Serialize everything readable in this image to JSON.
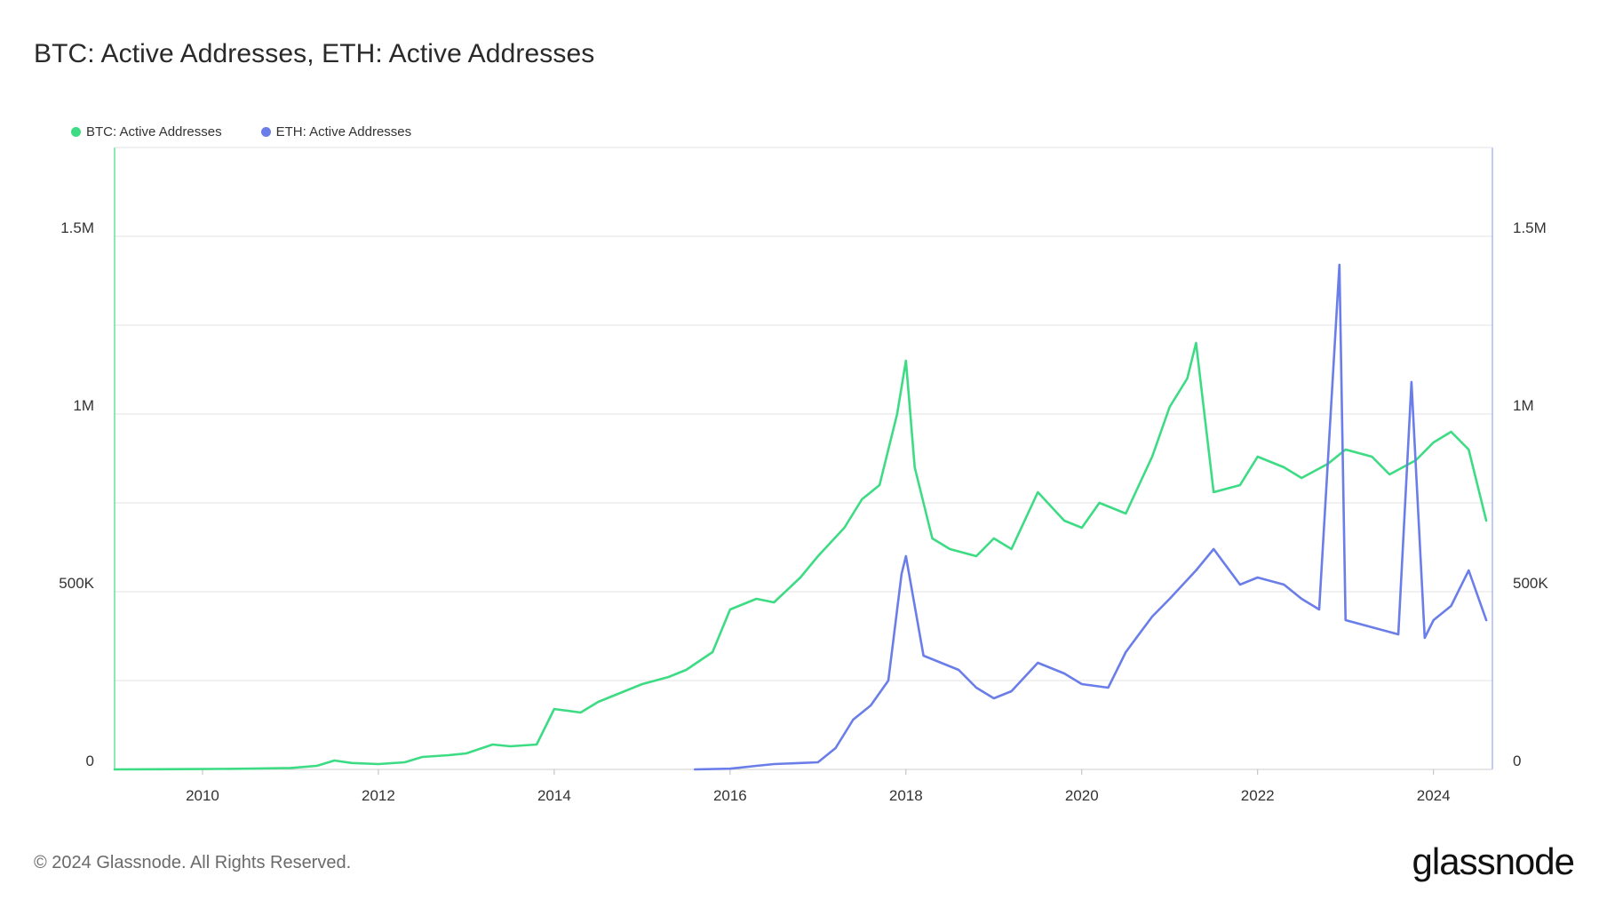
{
  "title": "BTC: Active Addresses, ETH: Active Addresses",
  "footer": "© 2024 Glassnode. All Rights Reserved.",
  "logo": "glassnode",
  "chart_data": {
    "type": "line",
    "title": "BTC: Active Addresses, ETH: Active Addresses",
    "xlabel": "",
    "ylabel": "",
    "xlim": [
      2009.0,
      2024.67
    ],
    "ylim": [
      0,
      1750000
    ],
    "grid": true,
    "legend_position": "top-left",
    "x_ticks": [
      2010,
      2012,
      2014,
      2016,
      2018,
      2020,
      2022,
      2024
    ],
    "x_tick_labels": [
      "2010",
      "2012",
      "2014",
      "2016",
      "2018",
      "2020",
      "2022",
      "2024"
    ],
    "y_ticks": [
      0,
      500000,
      1000000,
      1500000
    ],
    "y_tick_labels": [
      "0",
      "500K",
      "1M",
      "1.5M"
    ],
    "y_grid": [
      0,
      250000,
      500000,
      750000,
      1000000,
      1250000,
      1500000
    ],
    "right_y_tick_labels": [
      "0",
      "500K",
      "1M",
      "1.5M"
    ],
    "series": [
      {
        "name": "BTC: Active Addresses",
        "color": "#3ddc84",
        "x": [
          2009.0,
          2009.5,
          2010.0,
          2010.5,
          2011.0,
          2011.3,
          2011.5,
          2011.7,
          2012.0,
          2012.3,
          2012.5,
          2012.8,
          2013.0,
          2013.3,
          2013.5,
          2013.8,
          2014.0,
          2014.3,
          2014.5,
          2014.8,
          2015.0,
          2015.3,
          2015.5,
          2015.8,
          2016.0,
          2016.3,
          2016.5,
          2016.8,
          2017.0,
          2017.3,
          2017.5,
          2017.7,
          2017.9,
          2018.0,
          2018.1,
          2018.3,
          2018.5,
          2018.8,
          2019.0,
          2019.2,
          2019.5,
          2019.8,
          2020.0,
          2020.2,
          2020.5,
          2020.8,
          2021.0,
          2021.2,
          2021.3,
          2021.5,
          2021.8,
          2022.0,
          2022.3,
          2022.5,
          2022.8,
          2023.0,
          2023.3,
          2023.5,
          2023.8,
          2024.0,
          2024.2,
          2024.4,
          2024.6
        ],
        "y": [
          0,
          500,
          1000,
          2000,
          4000,
          10000,
          25000,
          18000,
          15000,
          20000,
          35000,
          40000,
          45000,
          70000,
          65000,
          70000,
          170000,
          160000,
          190000,
          220000,
          240000,
          260000,
          280000,
          330000,
          450000,
          480000,
          470000,
          540000,
          600000,
          680000,
          760000,
          800000,
          1000000,
          1150000,
          850000,
          650000,
          620000,
          600000,
          650000,
          620000,
          780000,
          700000,
          680000,
          750000,
          720000,
          880000,
          1020000,
          1100000,
          1200000,
          780000,
          800000,
          880000,
          850000,
          820000,
          860000,
          900000,
          880000,
          830000,
          870000,
          920000,
          950000,
          900000,
          700000
        ]
      },
      {
        "name": "ETH: Active Addresses",
        "color": "#6a7de8",
        "x": [
          2015.6,
          2016.0,
          2016.3,
          2016.5,
          2016.8,
          2017.0,
          2017.2,
          2017.4,
          2017.6,
          2017.8,
          2017.95,
          2018.0,
          2018.2,
          2018.4,
          2018.6,
          2018.8,
          2019.0,
          2019.2,
          2019.5,
          2019.8,
          2020.0,
          2020.3,
          2020.5,
          2020.8,
          2021.0,
          2021.3,
          2021.5,
          2021.8,
          2022.0,
          2022.3,
          2022.5,
          2022.7,
          2022.93,
          2023.0,
          2023.3,
          2023.6,
          2023.75,
          2023.9,
          2024.0,
          2024.2,
          2024.4,
          2024.6
        ],
        "y": [
          0,
          2000,
          10000,
          15000,
          18000,
          20000,
          60000,
          140000,
          180000,
          250000,
          550000,
          600000,
          320000,
          300000,
          280000,
          230000,
          200000,
          220000,
          300000,
          270000,
          240000,
          230000,
          330000,
          430000,
          480000,
          560000,
          620000,
          520000,
          540000,
          520000,
          480000,
          450000,
          1420000,
          420000,
          400000,
          380000,
          1090000,
          370000,
          420000,
          460000,
          560000,
          420000
        ]
      }
    ]
  }
}
